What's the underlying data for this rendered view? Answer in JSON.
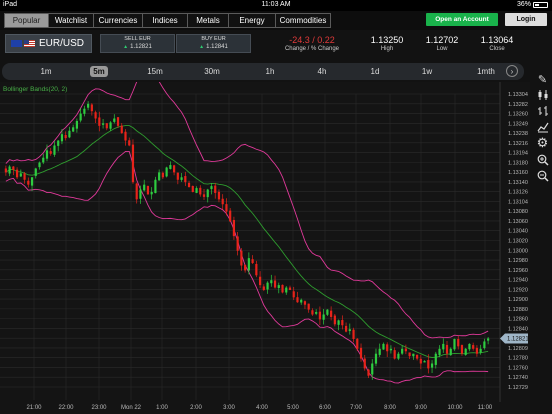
{
  "status_bar": {
    "device": "iPad",
    "time": "11:03 AM",
    "battery": "36%"
  },
  "nav": {
    "tabs": [
      "Popular",
      "Watchlist",
      "Currencies",
      "Indices",
      "Metals",
      "Energy",
      "Commodities"
    ],
    "active_tab": "Popular",
    "open_account": "Open an Account",
    "login": "Login"
  },
  "instrument": {
    "pair": "EUR/USD",
    "sell_label": "SELL EUR",
    "sell_price": "1.12821",
    "buy_label": "BUY EUR",
    "buy_price": "1.12841",
    "change_value": "-24.3 / 0.22",
    "change_label": "Change / % Change",
    "high_value": "1.13250",
    "high_label": "High",
    "low_value": "1.12702",
    "low_label": "Low",
    "close_value": "1.13064",
    "close_label": "Close"
  },
  "timeframes": [
    "1m",
    "5m",
    "15m",
    "30m",
    "1h",
    "4h",
    "1d",
    "1w",
    "1mth"
  ],
  "active_timeframe": "5m",
  "tools": [
    "pencil-icon",
    "candlestick-icon",
    "bars-icon",
    "line-chart-icon",
    "gear-icon",
    "zoom-in-icon",
    "zoom-out-icon"
  ],
  "chart_data": {
    "type": "candlestick",
    "indicator_label": "Bollinger Bands(20, 2)",
    "current_price": "1.12821",
    "y_ticks": [
      "1.13304",
      "1.13282",
      "1.13260",
      "1.13249",
      "1.13238",
      "1.13216",
      "1.13194",
      "1.13180",
      "1.13160",
      "1.13140",
      "1.13126",
      "1.13104",
      "1.13080",
      "1.13060",
      "1.13040",
      "1.13020",
      "1.13000",
      "1.12980",
      "1.12960",
      "1.12940",
      "1.12920",
      "1.12900",
      "1.12880",
      "1.12860",
      "1.12840",
      "1.12820",
      "1.12809",
      "1.12780",
      "1.12760",
      "1.12740",
      "1.12729"
    ],
    "x_ticks": [
      "21:00",
      "22:00",
      "23:00",
      "Mon 22",
      "1:00",
      "2:00",
      "3:00",
      "4:00",
      "5:00",
      "6:00",
      "7:00",
      "8:00",
      "9:00",
      "10:00",
      "11:00"
    ],
    "y_range": [
      1.1272,
      1.1332
    ],
    "colors": {
      "up": "#2ecc40",
      "down": "#e8231a",
      "band": "#e0399a",
      "mid": "#2e9b2e"
    },
    "price_path": [
      1.1316,
      1.13172,
      1.13165,
      1.1315,
      1.13158,
      1.13145,
      1.13135,
      1.1315,
      1.13168,
      1.1318,
      1.1319,
      1.13205,
      1.13198,
      1.13215,
      1.13225,
      1.13238,
      1.1323,
      1.13245,
      1.13252,
      1.13265,
      1.1328,
      1.1329,
      1.133,
      1.13285,
      1.1327,
      1.13255,
      1.1326,
      1.1325,
      1.13262,
      1.1327,
      1.13255,
      1.1324,
      1.13225,
      1.13215,
      1.1314,
      1.13105,
      1.13125,
      1.13135,
      1.13115,
      1.1312,
      1.13145,
      1.1316,
      1.1315,
      1.1317,
      1.13175,
      1.1316,
      1.13145,
      1.1315,
      1.1314,
      1.1313,
      1.1312,
      1.13128,
      1.13115,
      1.1311,
      1.13125,
      1.13132,
      1.13118,
      1.13105,
      1.13095,
      1.1308,
      1.1306,
      1.1303,
      1.13,
      1.1297,
      1.1296,
      1.12985,
      1.12975,
      1.1295,
      1.1293,
      1.1292,
      1.12935,
      1.1294,
      1.12925,
      1.1293,
      1.12915,
      1.12925,
      1.1292,
      1.12905,
      1.12895,
      1.129,
      1.1289,
      1.1288,
      1.1287,
      1.12875,
      1.1286,
      1.1287,
      1.1288,
      1.12865,
      1.1285,
      1.12858,
      1.12848,
      1.12835,
      1.1284,
      1.1282,
      1.128,
      1.1278,
      1.1276,
      1.12745,
      1.1277,
      1.1279,
      1.128,
      1.1281,
      1.12795,
      1.128,
      1.1278,
      1.1279,
      1.128,
      1.12795,
      1.12785,
      1.1279,
      1.1278,
      1.1277,
      1.12775,
      1.1276,
      1.1277,
      1.1279,
      1.128,
      1.1281,
      1.1279,
      1.128,
      1.1282,
      1.12805,
      1.1279,
      1.128,
      1.1281,
      1.128,
      1.1279,
      1.128,
      1.12815,
      1.12821
    ]
  }
}
